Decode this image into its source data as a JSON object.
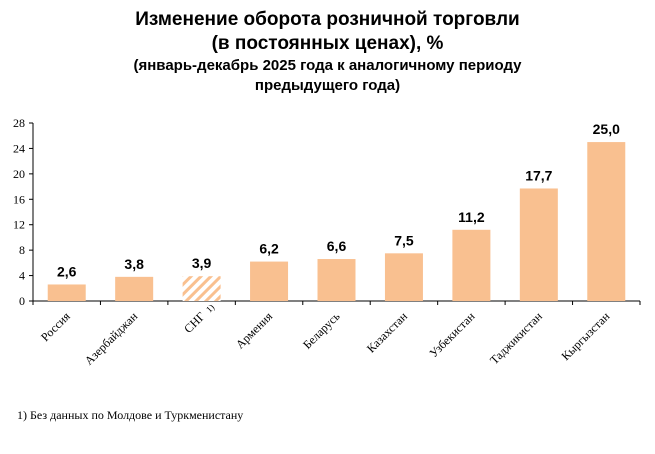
{
  "chart_data": {
    "type": "bar",
    "title": "Изменение оборота розничной торговли",
    "title_line2": "(в постоянных ценах), %",
    "subtitle": "(январь-декабрь 2025 года к аналогичному периоду",
    "subtitle_line2": "предыдущего года)",
    "xlabel": "",
    "ylabel": "",
    "ylim": [
      0,
      28
    ],
    "yticks": [
      0,
      4,
      8,
      12,
      16,
      20,
      24,
      28
    ],
    "grid": false,
    "categories": [
      "Россия",
      "Азербайджан",
      "СНГ",
      "Армения",
      "Беларусь",
      "Казахстан",
      "Узбекистан",
      "Таджикистан",
      "Кыргызстан"
    ],
    "category_superscripts": [
      "",
      "",
      "1)",
      "",
      "",
      "",
      "",
      "",
      ""
    ],
    "values": [
      2.6,
      3.8,
      3.9,
      6.2,
      6.6,
      7.5,
      11.2,
      17.7,
      25.0
    ],
    "data_labels": [
      "2,6",
      "3,8",
      "3,9",
      "6,2",
      "6,6",
      "7,5",
      "11,2",
      "17,7",
      "25,0"
    ],
    "hatched": [
      false,
      false,
      true,
      false,
      false,
      false,
      false,
      false,
      false
    ],
    "bar_color": "#f9c090",
    "footnote": "1) Без данных по Молдове и Туркменистану"
  }
}
